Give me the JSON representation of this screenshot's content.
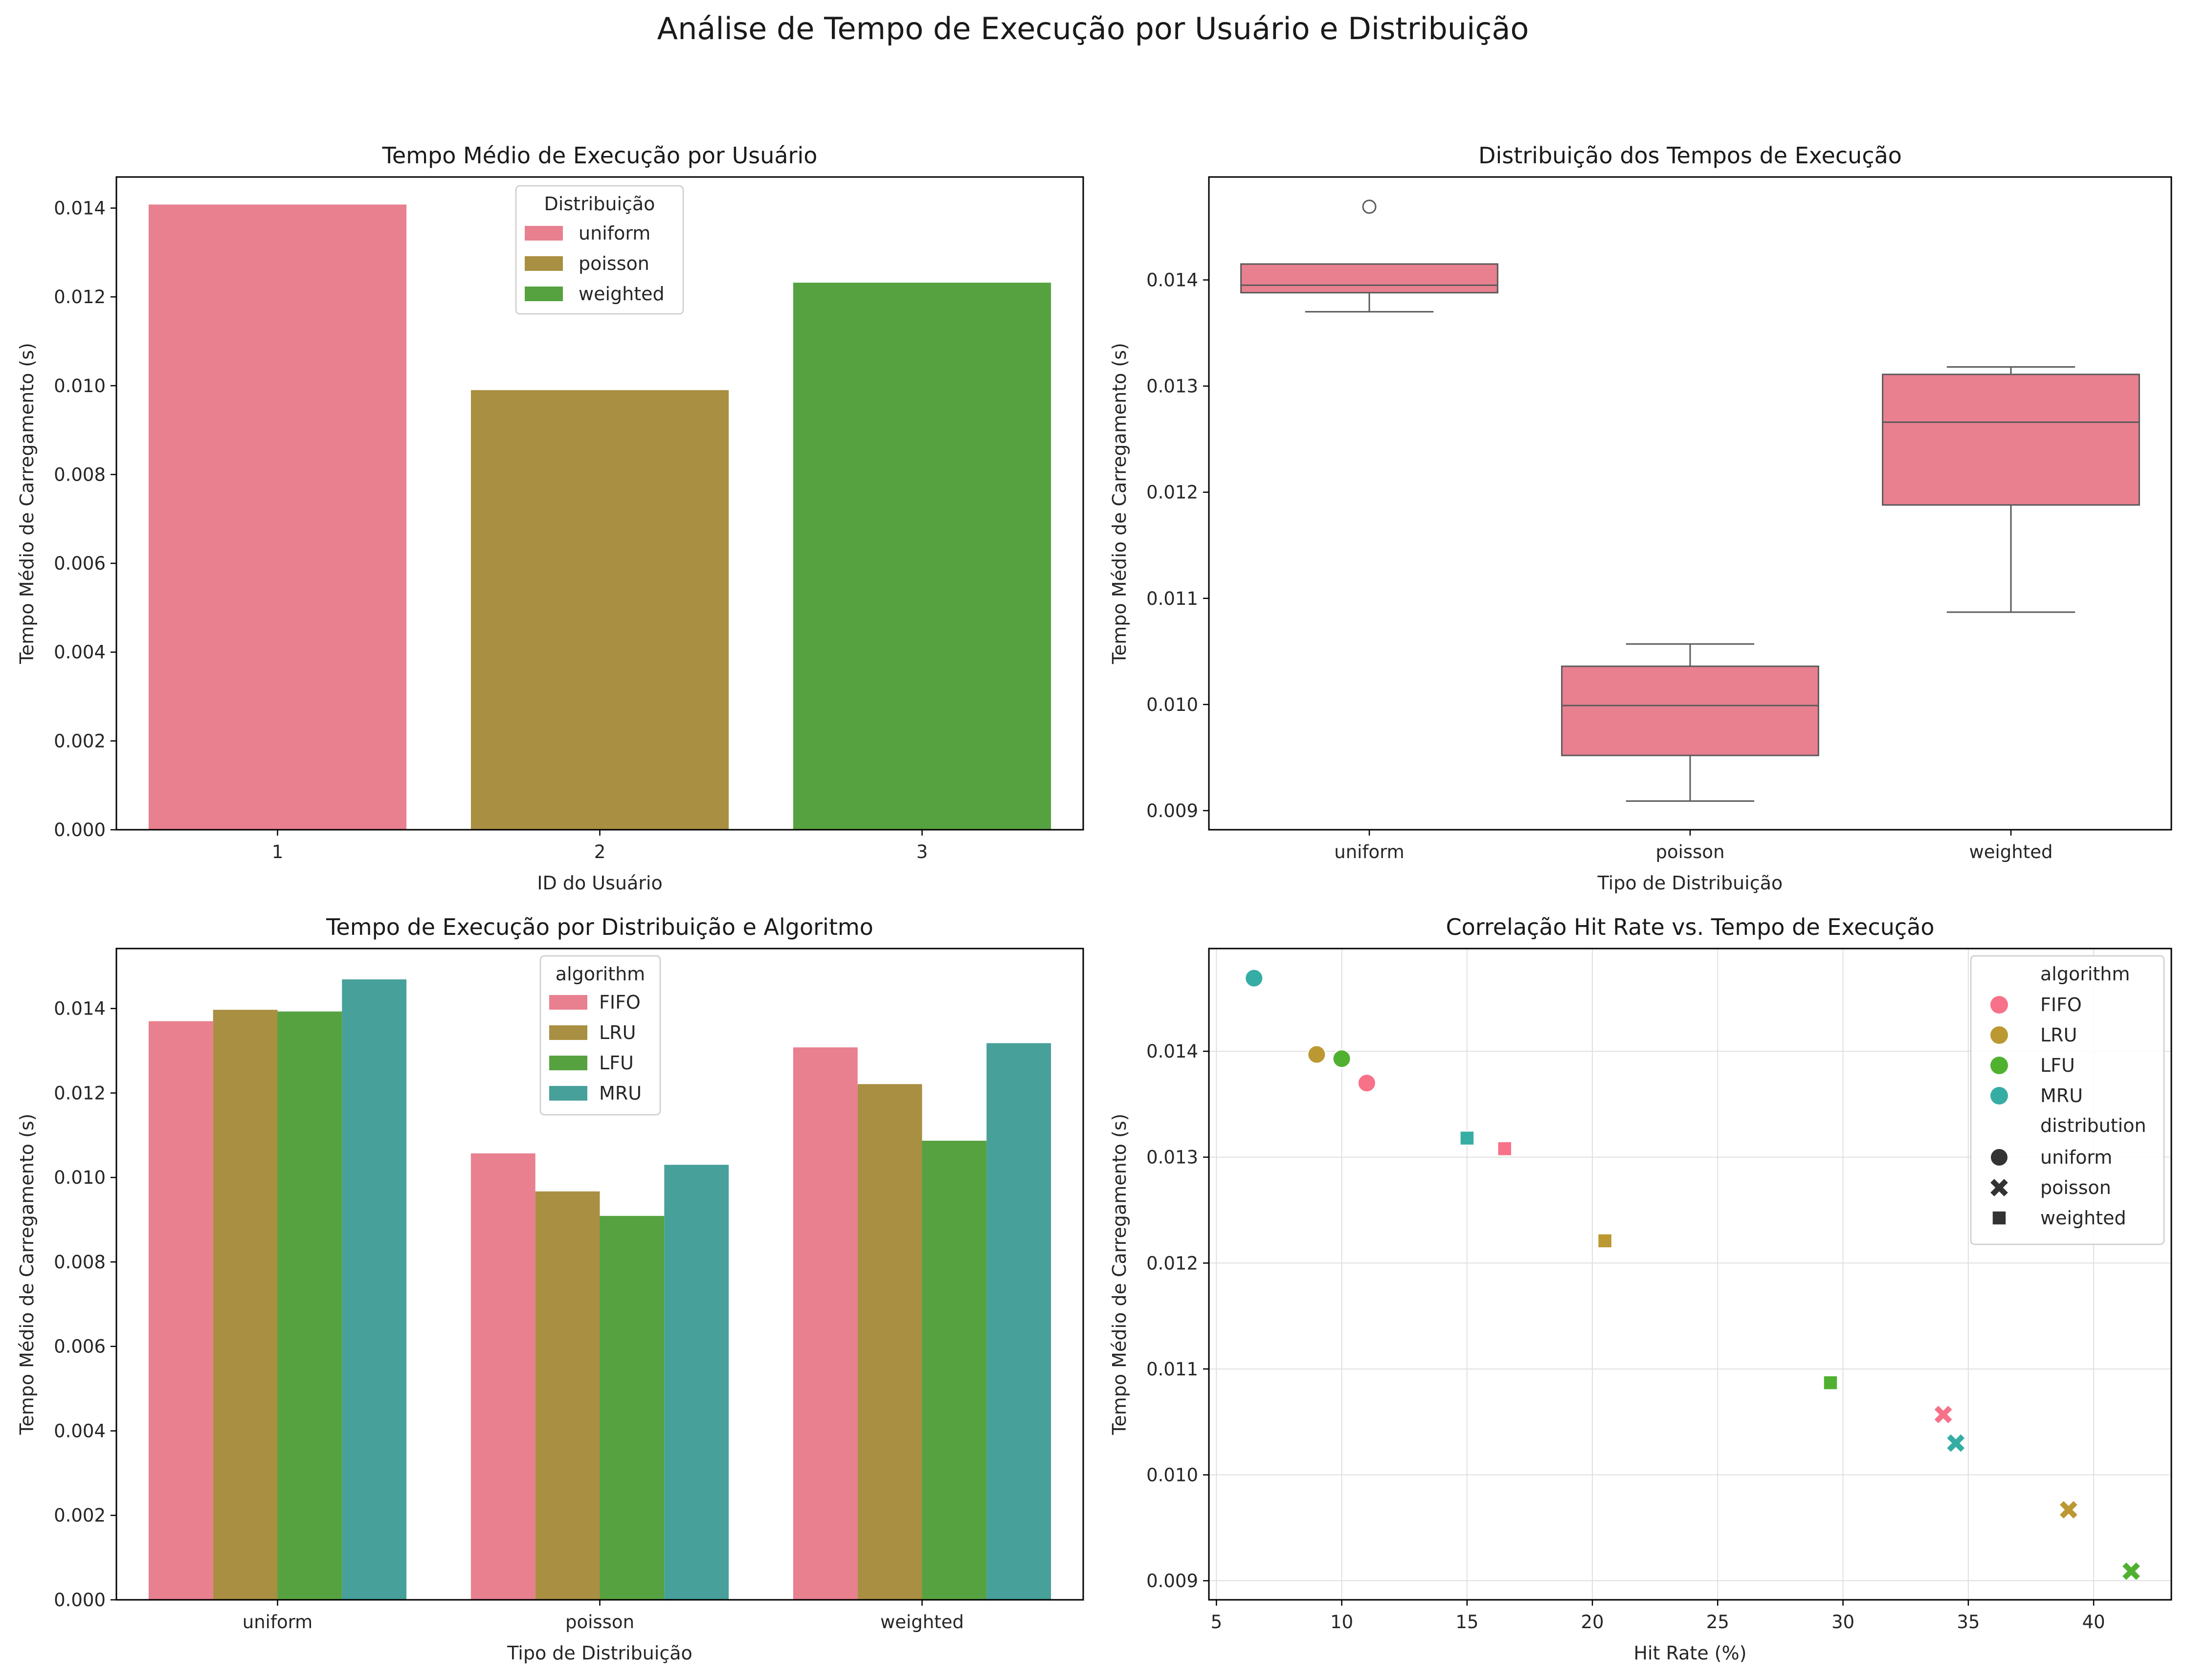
{
  "suptitle": "Análise de Tempo de Execução por Usuário e Distribuição",
  "colors": {
    "uniform": "#e8808f",
    "poisson": "#a88f41",
    "weighted": "#56a240",
    "FIFO": "#e8808f",
    "LRU": "#a88f41",
    "LFU": "#56a240",
    "MRU": "#47a09a",
    "FIFO_point": "#f77189",
    "LRU_point": "#bb9832",
    "LFU_point": "#50b131",
    "MRU_point": "#36ada4",
    "box": "#e8808f"
  },
  "chart_data": [
    {
      "type": "bar",
      "title": "Tempo Médio de Execução por Usuário",
      "xlabel": "ID do Usuário",
      "ylabel": "Tempo Médio de Carregamento (s)",
      "categories": [
        "1",
        "2",
        "3"
      ],
      "values": [
        0.01408,
        0.0099,
        0.01232
      ],
      "hue": [
        "uniform",
        "poisson",
        "weighted"
      ],
      "ylim": [
        0,
        0.0147
      ],
      "yticks": [
        "0.000",
        "0.002",
        "0.004",
        "0.006",
        "0.008",
        "0.010",
        "0.012",
        "0.014"
      ],
      "legend": {
        "title": "Distribuição",
        "entries": [
          "uniform",
          "poisson",
          "weighted"
        ],
        "placement": "upper-center"
      },
      "grid": false
    },
    {
      "type": "box",
      "title": "Distribuição dos Tempos de Execução",
      "xlabel": "Tipo de Distribuição",
      "ylabel": "Tempo Médio de Carregamento (s)",
      "categories": [
        "uniform",
        "poisson",
        "weighted"
      ],
      "boxes": [
        {
          "whislo": 0.0137,
          "q1": 0.01388,
          "med": 0.01395,
          "q3": 0.01415,
          "whishi": 0.01415,
          "fliers": [
            0.01469
          ]
        },
        {
          "whislo": 0.00909,
          "q1": 0.00952,
          "med": 0.00999,
          "q3": 0.01036,
          "whishi": 0.01057,
          "fliers": []
        },
        {
          "whislo": 0.01087,
          "q1": 0.01188,
          "med": 0.01266,
          "q3": 0.01311,
          "whishi": 0.01318,
          "fliers": []
        }
      ],
      "ylim": [
        0.00882,
        0.01497
      ],
      "yticks": [
        "0.009",
        "0.010",
        "0.011",
        "0.012",
        "0.013",
        "0.014"
      ],
      "grid": false
    },
    {
      "type": "bar",
      "title": "Tempo de Execução por Distribuição e Algoritmo",
      "xlabel": "Tipo de Distribuição",
      "ylabel": "Tempo Médio de Carregamento (s)",
      "categories": [
        "uniform",
        "poisson",
        "weighted"
      ],
      "series": [
        {
          "name": "FIFO",
          "values": [
            0.0137,
            0.01057,
            0.01308
          ]
        },
        {
          "name": "LRU",
          "values": [
            0.01397,
            0.00967,
            0.01221
          ]
        },
        {
          "name": "LFU",
          "values": [
            0.01393,
            0.00909,
            0.01087
          ]
        },
        {
          "name": "MRU",
          "values": [
            0.01469,
            0.0103,
            0.01318
          ]
        }
      ],
      "ylim": [
        0,
        0.01542
      ],
      "yticks": [
        "0.000",
        "0.002",
        "0.004",
        "0.006",
        "0.008",
        "0.010",
        "0.012",
        "0.014"
      ],
      "legend": {
        "title": "algorithm",
        "entries": [
          "FIFO",
          "LRU",
          "LFU",
          "MRU"
        ],
        "placement": "upper-center"
      },
      "grid": false
    },
    {
      "type": "scatter",
      "title": "Correlação Hit Rate vs. Tempo de Execução",
      "xlabel": "Hit Rate (%)",
      "ylabel": "Tempo Médio de Carregamento (s)",
      "xlim": [
        4.7,
        43.1
      ],
      "ylim": [
        0.00882,
        0.01497
      ],
      "xticks": [
        "5",
        "10",
        "15",
        "20",
        "25",
        "30",
        "35",
        "40"
      ],
      "yticks": [
        "0.009",
        "0.010",
        "0.011",
        "0.012",
        "0.013",
        "0.014"
      ],
      "points": [
        {
          "algorithm": "FIFO",
          "distribution": "uniform",
          "x": 11.0,
          "y": 0.0137
        },
        {
          "algorithm": "LRU",
          "distribution": "uniform",
          "x": 9.0,
          "y": 0.01397
        },
        {
          "algorithm": "LFU",
          "distribution": "uniform",
          "x": 10.0,
          "y": 0.01393
        },
        {
          "algorithm": "MRU",
          "distribution": "uniform",
          "x": 6.5,
          "y": 0.01469
        },
        {
          "algorithm": "FIFO",
          "distribution": "poisson",
          "x": 34.0,
          "y": 0.01057
        },
        {
          "algorithm": "LRU",
          "distribution": "poisson",
          "x": 39.0,
          "y": 0.00967
        },
        {
          "algorithm": "LFU",
          "distribution": "poisson",
          "x": 41.5,
          "y": 0.00909
        },
        {
          "algorithm": "MRU",
          "distribution": "poisson",
          "x": 34.5,
          "y": 0.0103
        },
        {
          "algorithm": "FIFO",
          "distribution": "weighted",
          "x": 16.5,
          "y": 0.01308
        },
        {
          "algorithm": "LRU",
          "distribution": "weighted",
          "x": 20.5,
          "y": 0.01221
        },
        {
          "algorithm": "LFU",
          "distribution": "weighted",
          "x": 29.5,
          "y": 0.01087
        },
        {
          "algorithm": "MRU",
          "distribution": "weighted",
          "x": 15.0,
          "y": 0.01318
        }
      ],
      "legend": {
        "hue_title": "algorithm",
        "hue_entries": [
          "FIFO",
          "LRU",
          "LFU",
          "MRU"
        ],
        "style_title": "distribution",
        "style_entries": [
          "uniform",
          "poisson",
          "weighted"
        ],
        "placement": "upper-right"
      },
      "grid": true
    }
  ]
}
